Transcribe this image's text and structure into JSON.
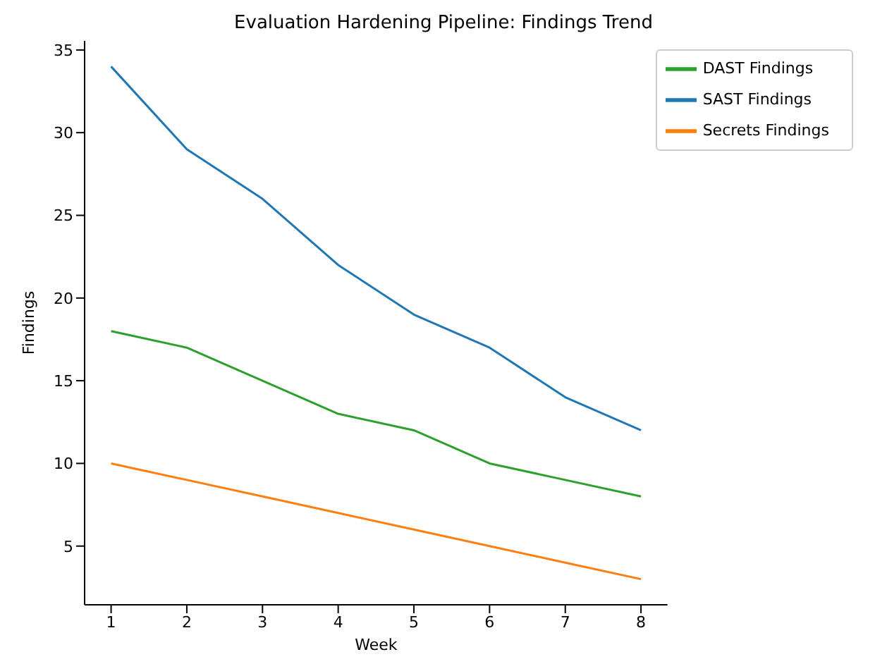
{
  "chart_data": {
    "type": "line",
    "title": "Evaluation Hardening Pipeline: Findings Trend",
    "xlabel": "Week",
    "ylabel": "Findings",
    "x": [
      1,
      2,
      3,
      4,
      5,
      6,
      7,
      8
    ],
    "series": [
      {
        "name": "SAST Findings",
        "color": "#1f77b4",
        "values": [
          34,
          29,
          26,
          22,
          19,
          17,
          14,
          12
        ]
      },
      {
        "name": "Secrets Findings",
        "color": "#ff7f0e",
        "values": [
          10,
          9,
          8,
          7,
          6,
          5,
          4,
          3
        ]
      },
      {
        "name": "DAST Findings",
        "color": "#2ca02c",
        "values": [
          18,
          17,
          15,
          13,
          12,
          10,
          9,
          8
        ]
      }
    ],
    "xlim": [
      0.65,
      8.35
    ],
    "xticks": [
      1,
      2,
      3,
      4,
      5,
      6,
      7,
      8
    ],
    "ylim": [
      1.45,
      35.55
    ],
    "yticks": [
      5,
      10,
      15,
      20,
      25,
      30,
      35
    ],
    "grid": false,
    "legend": "top right",
    "marker": "none",
    "line_style": "solid"
  }
}
